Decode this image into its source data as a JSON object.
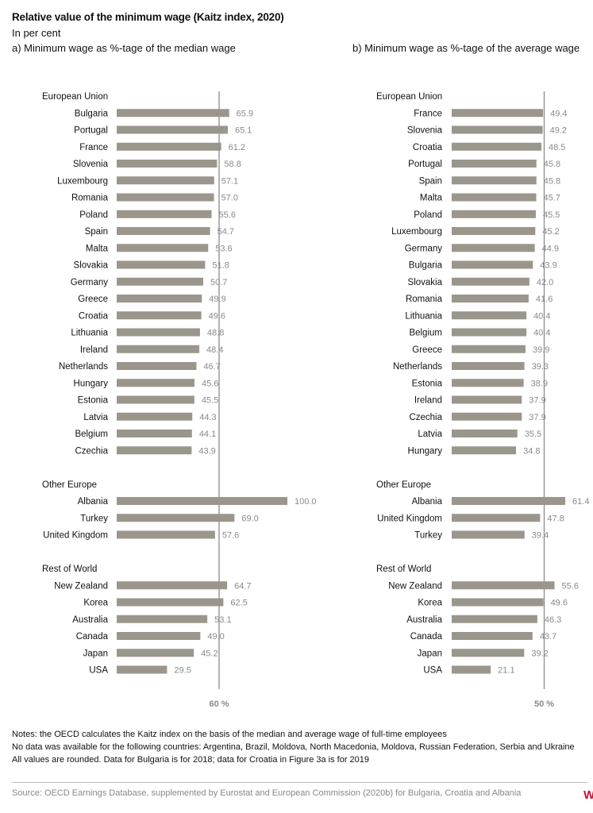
{
  "title": "Relative value of the minimum wage (Kaitz index, 2020)",
  "subtitle": "In per cent",
  "colors": {
    "bar": "#9b968c",
    "value_text": "#8a8a8a",
    "ref_line": "#8a8a8a",
    "text": "#111111"
  },
  "chart_data": [
    {
      "type": "bar",
      "orientation": "horizontal",
      "title": "a) Minimum wage as %-tage of the median wage",
      "reference_line": {
        "value": 60,
        "label": "60 %"
      },
      "xlim": [
        0,
        100
      ],
      "groups": [
        {
          "name": "European Union",
          "categories": [
            "Bulgaria",
            "Portugal",
            "France",
            "Slovenia",
            "Luxembourg",
            "Romania",
            "Poland",
            "Spain",
            "Malta",
            "Slovakia",
            "Germany",
            "Greece",
            "Croatia",
            "Lithuania",
            "Ireland",
            "Netherlands",
            "Hungary",
            "Estonia",
            "Latvia",
            "Belgium",
            "Czechia"
          ],
          "values": [
            65.9,
            65.1,
            61.2,
            58.8,
            57.1,
            57.0,
            55.6,
            54.7,
            53.6,
            51.8,
            50.7,
            49.9,
            49.6,
            48.8,
            48.4,
            46.7,
            45.6,
            45.5,
            44.3,
            44.1,
            43.9
          ],
          "labels": [
            "65.9",
            "65.1",
            "61.2",
            "58.8",
            "57.1",
            "57.0",
            "55.6",
            "54.7",
            "53.6",
            "51.8",
            "50.7",
            "49.9",
            "49.6",
            "48.8",
            "48.4",
            "46.7",
            "45.6",
            "45.5",
            "44.3",
            "44.1",
            "43.9"
          ]
        },
        {
          "name": "Other Europe",
          "categories": [
            "Albania",
            "Turkey",
            "United Kingdom"
          ],
          "values": [
            100.0,
            69.0,
            57.6
          ],
          "labels": [
            "100.0",
            "69.0",
            "57.6"
          ]
        },
        {
          "name": "Rest of World",
          "categories": [
            "New Zealand",
            "Korea",
            "Australia",
            "Canada",
            "Japan",
            "USA"
          ],
          "values": [
            64.7,
            62.5,
            53.1,
            49.0,
            45.2,
            29.5
          ],
          "labels": [
            "64.7",
            "62.5",
            "53.1",
            "49.0",
            "45.2",
            "29.5"
          ]
        }
      ]
    },
    {
      "type": "bar",
      "orientation": "horizontal",
      "title": "b) Minimum wage as %-tage of the average wage",
      "reference_line": {
        "value": 50,
        "label": "50 %"
      },
      "xlim": [
        0,
        61.4
      ],
      "groups": [
        {
          "name": "European Union",
          "categories": [
            "France",
            "Slovenia",
            "Croatia",
            "Portugal",
            "Spain",
            "Malta",
            "Poland",
            "Luxembourg",
            "Germany",
            "Bulgaria",
            "Slovakia",
            "Romania",
            "Lithuania",
            "Belgium",
            "Greece",
            "Netherlands",
            "Estonia",
            "Ireland",
            "Czechia",
            "Latvia",
            "Hungary"
          ],
          "values": [
            49.4,
            49.2,
            48.5,
            45.8,
            45.8,
            45.7,
            45.5,
            45.2,
            44.9,
            43.9,
            42.0,
            41.6,
            40.4,
            40.4,
            39.9,
            39.3,
            38.9,
            37.9,
            37.9,
            35.5,
            34.8
          ],
          "labels": [
            "49.4",
            "49.2",
            "48.5",
            "45.8",
            "45.8",
            "45.7",
            "45.5",
            "45.2",
            "44.9",
            "43.9",
            "42.0",
            "41.6",
            "40.4",
            "40.4",
            "39.9",
            "39.3",
            "38.9",
            "37.9",
            "37.9",
            "35.5",
            "34.8"
          ]
        },
        {
          "name": "Other Europe",
          "categories": [
            "Albania",
            "United Kingdom",
            "Turkey"
          ],
          "values": [
            61.4,
            47.8,
            39.4
          ],
          "labels": [
            "61.4",
            "47.8",
            "39.4"
          ]
        },
        {
          "name": "Rest of World",
          "categories": [
            "New Zealand",
            "Korea",
            "Australia",
            "Canada",
            "Japan",
            "USA"
          ],
          "values": [
            55.6,
            49.6,
            46.3,
            43.7,
            39.2,
            21.1
          ],
          "labels": [
            "55.6",
            "49.6",
            "46.3",
            "43.7",
            "39.2",
            "21.1"
          ]
        }
      ]
    }
  ],
  "notes": [
    "Notes: the OECD calculates the Kaitz index on the basis of the median and average wage of full-time employees",
    "No data was available for the following countries: Argentina, Brazil, Moldova, North Macedonia, Moldova, Russian Federation, Serbia and Ukraine",
    "All values are rounded. Data for Bulgaria is for 2018; data for Croatia in Figure 3a is for 2019"
  ],
  "source": "Source: OECD Earnings Database, supplemented by Eurostat and European Commission (2020b) for Bulgaria, Croatia and Albania",
  "logo_text": "W"
}
